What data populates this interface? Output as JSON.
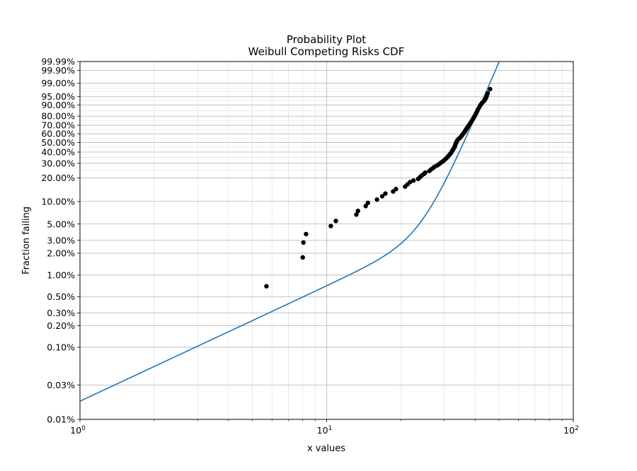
{
  "chart_data": {
    "type": "scatter",
    "title": "Probability Plot",
    "subtitle": "Weibull Competing Risks CDF",
    "xlabel": "x values",
    "ylabel": "Fraction failing",
    "x_scale": "log",
    "y_scale": "weibull",
    "xlim": [
      1,
      100
    ],
    "ylim": [
      0.0001,
      0.9999
    ],
    "grid": true,
    "x_ticks": [
      {
        "value": 1,
        "base": "10",
        "exp": "0"
      },
      {
        "value": 10,
        "base": "10",
        "exp": "1"
      },
      {
        "value": 100,
        "base": "10",
        "exp": "2"
      }
    ],
    "y_ticks": [
      {
        "value": 0.0001,
        "label": "0.01%"
      },
      {
        "value": 0.0003,
        "label": "0.03%"
      },
      {
        "value": 0.001,
        "label": "0.10%"
      },
      {
        "value": 0.002,
        "label": "0.20%"
      },
      {
        "value": 0.003,
        "label": "0.30%"
      },
      {
        "value": 0.005,
        "label": "0.50%"
      },
      {
        "value": 0.01,
        "label": "1.00%"
      },
      {
        "value": 0.02,
        "label": "2.00%"
      },
      {
        "value": 0.03,
        "label": "3.00%"
      },
      {
        "value": 0.05,
        "label": "5.00%"
      },
      {
        "value": 0.1,
        "label": "10.00%"
      },
      {
        "value": 0.2,
        "label": "20.00%"
      },
      {
        "value": 0.3,
        "label": "30.00%"
      },
      {
        "value": 0.4,
        "label": "40.00%"
      },
      {
        "value": 0.5,
        "label": "50.00%"
      },
      {
        "value": 0.6,
        "label": "60.00%"
      },
      {
        "value": 0.7,
        "label": "70.00%"
      },
      {
        "value": 0.8,
        "label": "80.00%"
      },
      {
        "value": 0.9,
        "label": "90.00%"
      },
      {
        "value": 0.95,
        "label": "95.00%"
      },
      {
        "value": 0.99,
        "label": "99.00%"
      },
      {
        "value": 0.999,
        "label": "99.90%"
      },
      {
        "value": 0.9999,
        "label": "99.99%"
      }
    ],
    "series": [
      {
        "type": "scatter",
        "color": "#000000",
        "points": [
          [
            5.7,
            0.007
          ],
          [
            8.0,
            0.0175
          ],
          [
            8.05,
            0.028
          ],
          [
            8.25,
            0.0365
          ],
          [
            10.4,
            0.047
          ],
          [
            10.9,
            0.055
          ],
          [
            13.2,
            0.067
          ],
          [
            13.4,
            0.075
          ],
          [
            14.4,
            0.087
          ],
          [
            14.7,
            0.096
          ],
          [
            16.0,
            0.106
          ],
          [
            16.8,
            0.117
          ],
          [
            17.3,
            0.127
          ],
          [
            18.6,
            0.135
          ],
          [
            19.1,
            0.145
          ],
          [
            20.8,
            0.156
          ],
          [
            21.3,
            0.167
          ],
          [
            21.8,
            0.178
          ],
          [
            22.5,
            0.186
          ],
          [
            23.5,
            0.195
          ],
          [
            23.9,
            0.205
          ],
          [
            24.3,
            0.215
          ],
          [
            24.8,
            0.224
          ],
          [
            25.1,
            0.233
          ],
          [
            26.1,
            0.244
          ],
          [
            26.5,
            0.254
          ],
          [
            27.0,
            0.264
          ],
          [
            27.4,
            0.274
          ],
          [
            28.1,
            0.284
          ],
          [
            28.6,
            0.294
          ],
          [
            29.0,
            0.304
          ],
          [
            29.5,
            0.314
          ],
          [
            29.9,
            0.324
          ],
          [
            30.3,
            0.335
          ],
          [
            30.7,
            0.346
          ],
          [
            31.0,
            0.357
          ],
          [
            31.3,
            0.368
          ],
          [
            31.6,
            0.379
          ],
          [
            31.9,
            0.39
          ],
          [
            32.1,
            0.401
          ],
          [
            32.3,
            0.412
          ],
          [
            32.5,
            0.423
          ],
          [
            32.7,
            0.434
          ],
          [
            32.9,
            0.445
          ],
          [
            33.1,
            0.457
          ],
          [
            33.2,
            0.47
          ],
          [
            33.3,
            0.482
          ],
          [
            33.5,
            0.495
          ],
          [
            33.6,
            0.507
          ],
          [
            33.8,
            0.52
          ],
          [
            34.1,
            0.534
          ],
          [
            34.5,
            0.547
          ],
          [
            34.9,
            0.56
          ],
          [
            35.2,
            0.574
          ],
          [
            35.5,
            0.588
          ],
          [
            35.8,
            0.602
          ],
          [
            36.1,
            0.616
          ],
          [
            36.4,
            0.63
          ],
          [
            36.6,
            0.645
          ],
          [
            36.9,
            0.659
          ],
          [
            37.2,
            0.673
          ],
          [
            37.5,
            0.688
          ],
          [
            37.8,
            0.702
          ],
          [
            38.1,
            0.716
          ],
          [
            38.4,
            0.73
          ],
          [
            38.7,
            0.745
          ],
          [
            39.0,
            0.76
          ],
          [
            39.3,
            0.775
          ],
          [
            39.6,
            0.79
          ],
          [
            39.9,
            0.805
          ],
          [
            40.2,
            0.82
          ],
          [
            40.5,
            0.835
          ],
          [
            40.8,
            0.85
          ],
          [
            41.1,
            0.865
          ],
          [
            41.5,
            0.88
          ],
          [
            41.9,
            0.895
          ],
          [
            42.3,
            0.905
          ],
          [
            42.7,
            0.915
          ],
          [
            43.4,
            0.925
          ],
          [
            43.9,
            0.935
          ],
          [
            44.3,
            0.945
          ],
          [
            44.6,
            0.955
          ],
          [
            45.0,
            0.965
          ],
          [
            46.0,
            0.978
          ]
        ]
      },
      {
        "type": "line",
        "name": "",
        "color": "#1f77b4",
        "model": "weibull_competing_risks",
        "params": {
          "alpha_1": 220,
          "beta_1": 1.6,
          "alpha_2": 38,
          "beta_2": 8
        },
        "x_range": [
          1,
          100
        ]
      }
    ]
  }
}
